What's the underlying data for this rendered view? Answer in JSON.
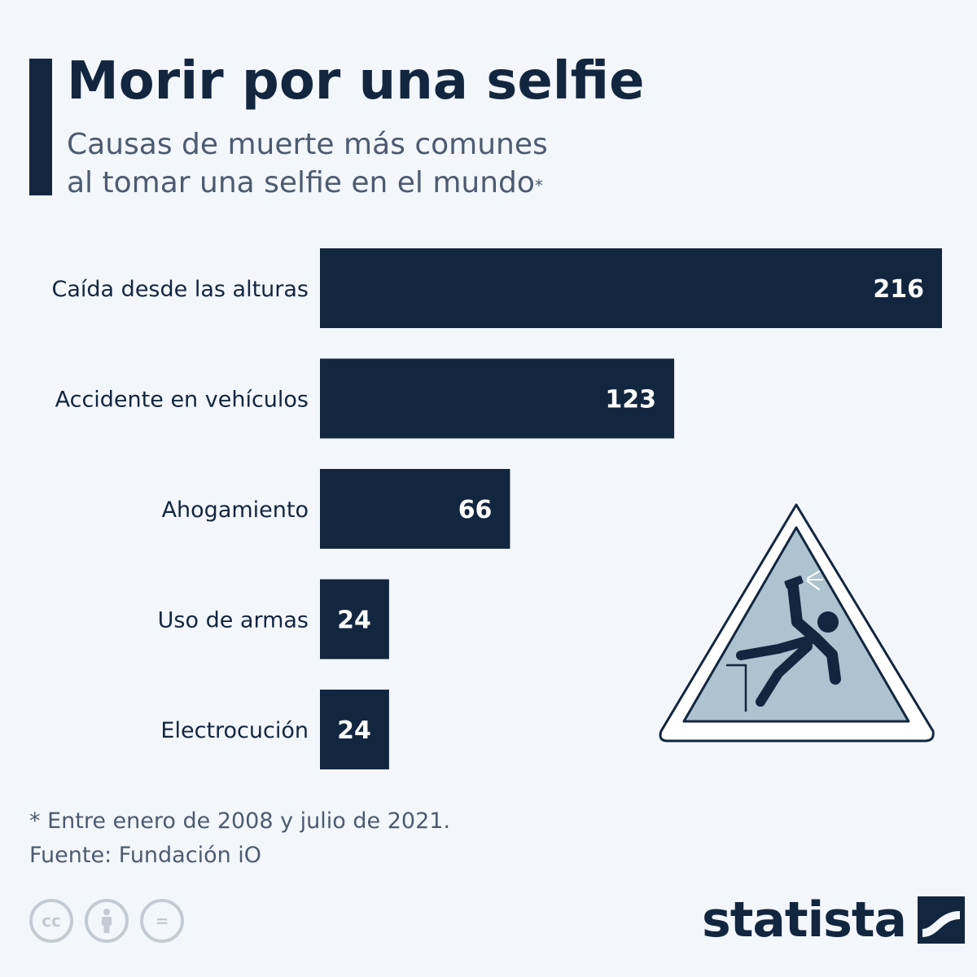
{
  "header": {
    "title": "Morir por una selfie",
    "subtitle_line1": "Causas de muerte más comunes",
    "subtitle_line2": "al tomar una selfie en el mundo",
    "subtitle_marker": "*"
  },
  "chart_data": {
    "type": "bar",
    "orientation": "horizontal",
    "title": "Morir por una selfie",
    "subtitle": "Causas de muerte más comunes al tomar una selfie en el mundo*",
    "categories": [
      "Caída desde las alturas",
      "Accidente en vehículos",
      "Ahogamiento",
      "Uso de armas",
      "Electrocución"
    ],
    "values": [
      216,
      123,
      66,
      24,
      24
    ],
    "xlim": [
      0,
      216
    ],
    "grid": false,
    "legend": false
  },
  "footer": {
    "note": "* Entre enero de 2008 y julio de 2021.",
    "source": "Fuente: Fundación iO",
    "brand": "statista",
    "license_icons": [
      "cc-icon",
      "attribution-icon",
      "no-derivatives-icon"
    ],
    "license_glyphs": [
      "cc",
      "",
      "="
    ]
  },
  "colors": {
    "background": "#f3f7fc",
    "bar": "#12263f",
    "title": "#12263f",
    "subtitle": "#4c5b70",
    "label": "#12263f",
    "value": "#ffffff",
    "footnote": "#4c5b70",
    "sign_fill": "#adc3cf",
    "license": "#c3cad3"
  },
  "illustration": {
    "icon": "falling-person-warning-icon"
  }
}
